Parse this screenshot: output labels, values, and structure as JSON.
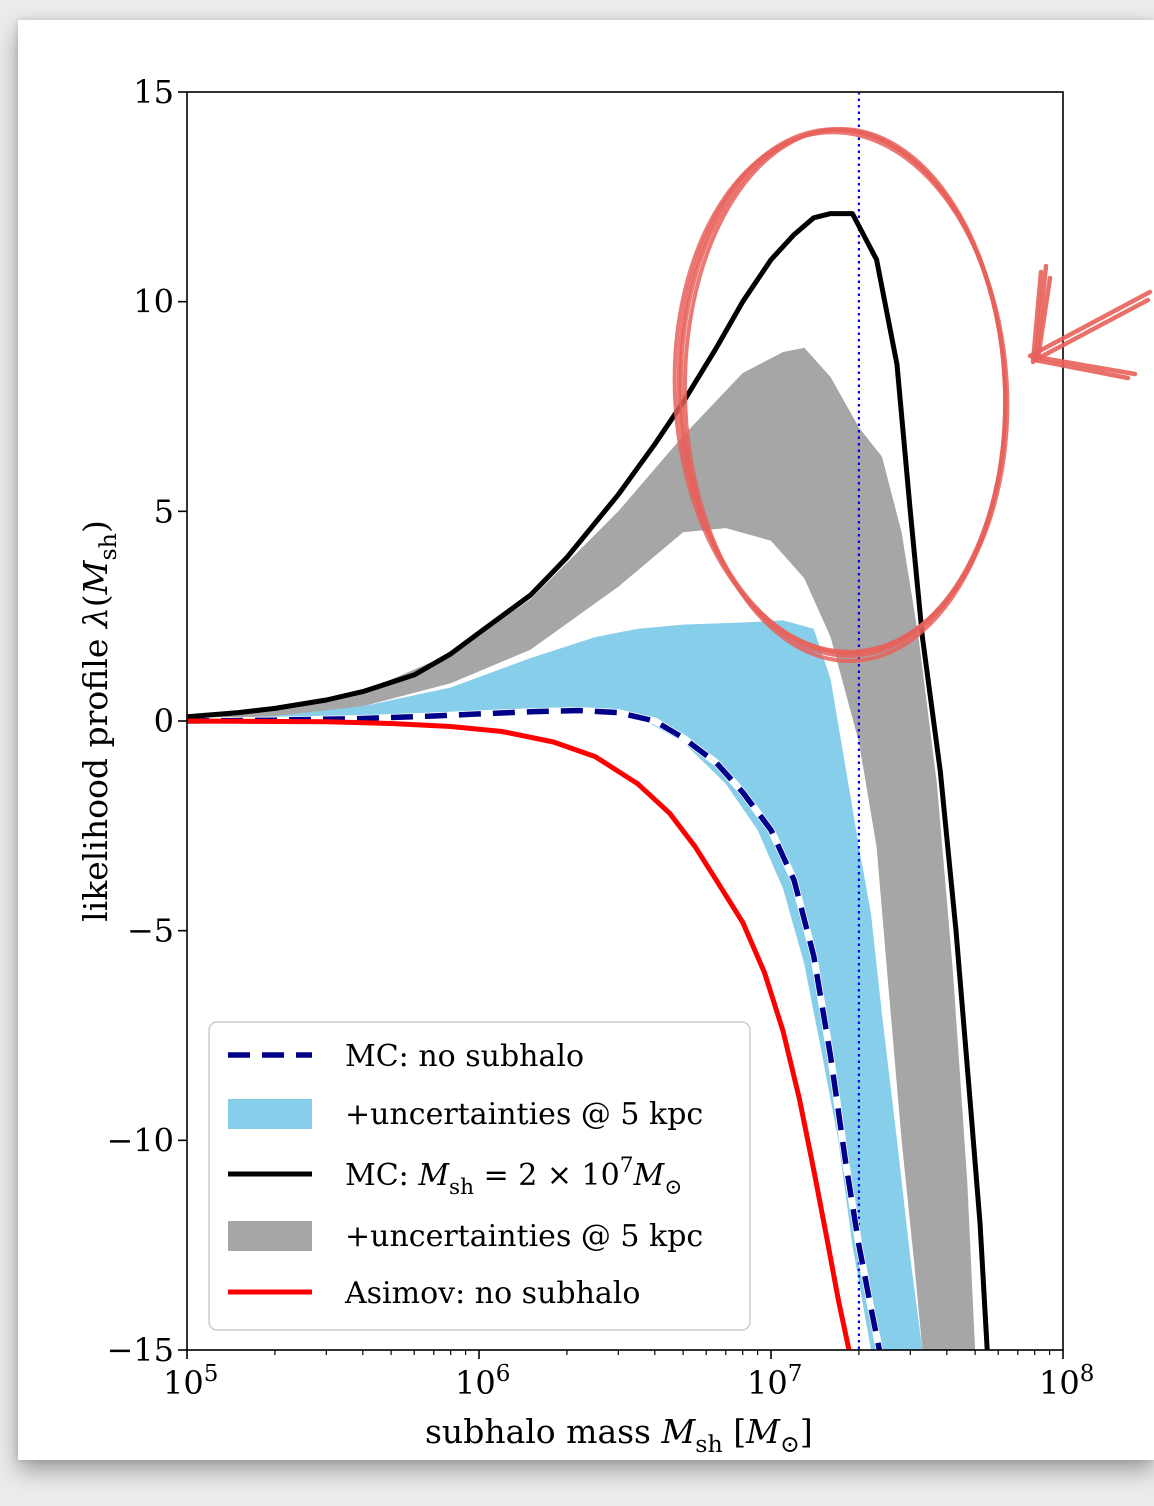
{
  "chart_data": {
    "type": "line",
    "xlabel": "subhalo mass M_sh [M_⊙]",
    "ylabel": "likelihood profile λ(M_sh)",
    "xscale": "log",
    "xlim": [
      100000,
      100000000
    ],
    "ylim": [
      -15,
      15
    ],
    "xticks": [
      {
        "value": 100000,
        "base": "10",
        "exp": "5"
      },
      {
        "value": 1000000,
        "base": "10",
        "exp": "6"
      },
      {
        "value": 10000000,
        "base": "10",
        "exp": "7"
      },
      {
        "value": 100000000,
        "base": "10",
        "exp": "8"
      }
    ],
    "yticks": [
      {
        "value": 15,
        "label": "15"
      },
      {
        "value": 10,
        "label": "10"
      },
      {
        "value": 5,
        "label": "5"
      },
      {
        "value": 0,
        "label": "0"
      },
      {
        "value": -5,
        "label": "−5"
      },
      {
        "value": -10,
        "label": "−10"
      },
      {
        "value": -15,
        "label": "−15"
      }
    ],
    "vline": {
      "x": 20000000,
      "color": "#0000ff",
      "style": "dotted"
    },
    "legend_position": "lower-left",
    "series": [
      {
        "name": "+uncertainties @ 5 kpc",
        "kind": "band",
        "color": "#a6a6a6",
        "upper": [
          [
            100000,
            0.05
          ],
          [
            200000,
            0.25
          ],
          [
            400000,
            0.7
          ],
          [
            800000,
            1.6
          ],
          [
            1500000,
            2.9
          ],
          [
            3000000,
            5.0
          ],
          [
            5000000,
            6.8
          ],
          [
            8000000,
            8.3
          ],
          [
            11000000,
            8.8
          ],
          [
            13000000,
            8.9
          ],
          [
            16000000,
            8.2
          ],
          [
            20000000,
            7.0
          ],
          [
            24000000,
            6.3
          ],
          [
            28000000,
            4.5
          ],
          [
            32000000,
            2.0
          ],
          [
            37000000,
            -1.5
          ],
          [
            42000000,
            -6.0
          ],
          [
            47000000,
            -11.0
          ],
          [
            50000000,
            -15.0
          ]
        ],
        "lower": [
          [
            100000,
            0.0
          ],
          [
            200000,
            0.1
          ],
          [
            400000,
            0.35
          ],
          [
            800000,
            0.9
          ],
          [
            1500000,
            1.7
          ],
          [
            3000000,
            3.2
          ],
          [
            5000000,
            4.5
          ],
          [
            7000000,
            4.6
          ],
          [
            10000000,
            4.3
          ],
          [
            13000000,
            3.4
          ],
          [
            16000000,
            2.0
          ],
          [
            20000000,
            -0.5
          ],
          [
            23000000,
            -3.0
          ],
          [
            25000000,
            -6.0
          ],
          [
            28000000,
            -10.0
          ],
          [
            31000000,
            -13.0
          ],
          [
            33000000,
            -15.0
          ]
        ]
      },
      {
        "name": "+uncertainties @ 5 kpc",
        "kind": "band",
        "color": "#87ceeb",
        "upper": [
          [
            100000,
            0.0
          ],
          [
            200000,
            0.12
          ],
          [
            400000,
            0.35
          ],
          [
            800000,
            0.8
          ],
          [
            1500000,
            1.5
          ],
          [
            2500000,
            2.0
          ],
          [
            3500000,
            2.2
          ],
          [
            5000000,
            2.3
          ],
          [
            8000000,
            2.35
          ],
          [
            11000000,
            2.4
          ],
          [
            14000000,
            2.2
          ],
          [
            16000000,
            1.0
          ],
          [
            18000000,
            -1.1
          ],
          [
            20000000,
            -3.0
          ],
          [
            22000000,
            -4.6
          ],
          [
            24000000,
            -7.0
          ],
          [
            27000000,
            -10.0
          ],
          [
            30000000,
            -12.8
          ],
          [
            33000000,
            -15.0
          ]
        ],
        "lower": [
          [
            100000,
            0.0
          ],
          [
            500000,
            0.05
          ],
          [
            1000000,
            0.1
          ],
          [
            2000000,
            0.2
          ],
          [
            3500000,
            0.1
          ],
          [
            5000000,
            -0.5
          ],
          [
            7000000,
            -1.5
          ],
          [
            9000000,
            -2.6
          ],
          [
            11000000,
            -4.0
          ],
          [
            13000000,
            -5.8
          ],
          [
            15000000,
            -8.0
          ],
          [
            17000000,
            -10.0
          ],
          [
            19000000,
            -12.5
          ],
          [
            22000000,
            -15.0
          ]
        ]
      },
      {
        "name": "MC: no subhalo",
        "kind": "line",
        "style": "dashed",
        "color": "#00008b",
        "points": [
          [
            100000,
            0.0
          ],
          [
            200000,
            0.02
          ],
          [
            400000,
            0.06
          ],
          [
            700000,
            0.12
          ],
          [
            1000000,
            0.17
          ],
          [
            1500000,
            0.22
          ],
          [
            2200000,
            0.25
          ],
          [
            3000000,
            0.2
          ],
          [
            4000000,
            0.0
          ],
          [
            5000000,
            -0.4
          ],
          [
            6500000,
            -1.0
          ],
          [
            8000000,
            -1.7
          ],
          [
            10000000,
            -2.6
          ],
          [
            12000000,
            -3.8
          ],
          [
            14000000,
            -5.6
          ],
          [
            16000000,
            -8.0
          ],
          [
            18000000,
            -10.5
          ],
          [
            20000000,
            -12.5
          ],
          [
            22000000,
            -14.0
          ],
          [
            23500000,
            -15.0
          ]
        ]
      },
      {
        "name": "MC: M_sh = 2 × 10^7 M_⊙",
        "kind": "line",
        "style": "solid",
        "color": "#000000",
        "points": [
          [
            100000,
            0.1
          ],
          [
            150000,
            0.2
          ],
          [
            200000,
            0.3
          ],
          [
            300000,
            0.5
          ],
          [
            400000,
            0.7
          ],
          [
            600000,
            1.1
          ],
          [
            800000,
            1.6
          ],
          [
            1000000,
            2.1
          ],
          [
            1500000,
            3.0
          ],
          [
            2000000,
            3.9
          ],
          [
            3000000,
            5.4
          ],
          [
            4000000,
            6.6
          ],
          [
            5000000,
            7.6
          ],
          [
            6500000,
            8.9
          ],
          [
            8000000,
            10.0
          ],
          [
            10000000,
            11.0
          ],
          [
            12000000,
            11.6
          ],
          [
            14000000,
            12.0
          ],
          [
            16000000,
            12.1
          ],
          [
            19000000,
            12.1
          ],
          [
            23000000,
            11.0
          ],
          [
            27000000,
            8.5
          ],
          [
            30000000,
            5.0
          ],
          [
            33000000,
            2.0
          ],
          [
            38000000,
            -1.2
          ],
          [
            43000000,
            -5.0
          ],
          [
            48000000,
            -9.0
          ],
          [
            52000000,
            -12.0
          ],
          [
            55000000,
            -15.0
          ]
        ]
      },
      {
        "name": "Asimov: no subhalo",
        "kind": "line",
        "style": "solid",
        "color": "#ff0000",
        "points": [
          [
            100000,
            0.0
          ],
          [
            300000,
            -0.02
          ],
          [
            500000,
            -0.06
          ],
          [
            800000,
            -0.13
          ],
          [
            1200000,
            -0.25
          ],
          [
            1800000,
            -0.5
          ],
          [
            2500000,
            -0.85
          ],
          [
            3500000,
            -1.5
          ],
          [
            4500000,
            -2.2
          ],
          [
            5500000,
            -3.0
          ],
          [
            6500000,
            -3.8
          ],
          [
            8000000,
            -4.8
          ],
          [
            9500000,
            -6.0
          ],
          [
            11000000,
            -7.4
          ],
          [
            12500000,
            -9.0
          ],
          [
            14000000,
            -10.7
          ],
          [
            15500000,
            -12.3
          ],
          [
            17000000,
            -13.8
          ],
          [
            18500000,
            -15.0
          ]
        ]
      }
    ]
  },
  "legend": {
    "items": [
      {
        "key": "dashed-navy",
        "parts": [
          {
            "t": "MC: no subhalo"
          }
        ]
      },
      {
        "key": "band-lightblue",
        "parts": [
          {
            "t": "+uncertainties @ 5 kpc"
          }
        ]
      },
      {
        "key": "line-black",
        "parts": [
          {
            "t": "MC: "
          },
          {
            "t": "M",
            "i": true
          },
          {
            "t": "sh",
            "sub": true
          },
          {
            "t": " = 2 × 10"
          },
          {
            "t": "7",
            "sup": true
          },
          {
            "t": "M",
            "i": true
          },
          {
            "t": "⊙",
            "sub": true
          }
        ]
      },
      {
        "key": "band-gray",
        "parts": [
          {
            "t": "+uncertainties @ 5 kpc"
          }
        ]
      },
      {
        "key": "line-red",
        "parts": [
          {
            "t": "Asimov: no subhalo"
          }
        ]
      }
    ]
  },
  "xlabel_parts": [
    {
      "t": "subhalo mass "
    },
    {
      "t": "M",
      "i": true
    },
    {
      "t": "sh",
      "sub": true
    },
    {
      "t": " ["
    },
    {
      "t": "M",
      "i": true
    },
    {
      "t": "⊙",
      "sub": true
    },
    {
      "t": "]"
    }
  ],
  "ylabel_parts": [
    {
      "t": "likelihood profile "
    },
    {
      "t": "λ",
      "i": true
    },
    {
      "t": "("
    },
    {
      "t": "M",
      "i": true
    },
    {
      "t": "sh",
      "sub": true
    },
    {
      "t": ")"
    }
  ],
  "annotation": {
    "shape": "hand-drawn ellipse and arrow",
    "color": "#e8605a"
  }
}
